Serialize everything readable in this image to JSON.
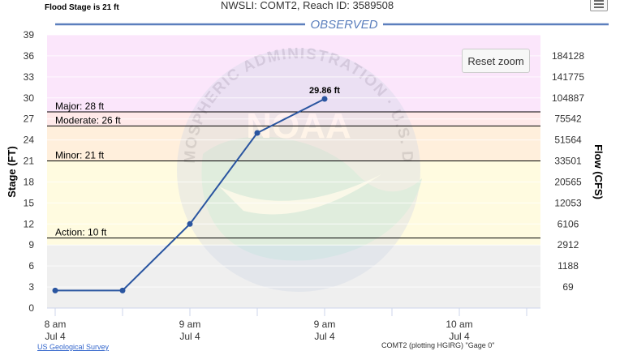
{
  "header": {
    "flood_stage_text": "Flood Stage is 21 ft",
    "station_text": "NWSLI: COMT2, Reach ID: 3589508"
  },
  "controls": {
    "reset_zoom_label": "Reset zoom"
  },
  "footer": {
    "source_link": "US Geological Survey",
    "plot_note": "COMT2 (plotting HGIRG) \"Gage 0\""
  },
  "chart_data": {
    "type": "line",
    "title": "OBSERVED",
    "ylabel": "Stage (FT)",
    "y2label": "Flow (CFS)",
    "ylim": [
      0,
      39
    ],
    "y_ticks": [
      0,
      3,
      6,
      9,
      12,
      15,
      18,
      21,
      24,
      27,
      30,
      33,
      36,
      39
    ],
    "y2_tick_labels": [
      {
        "stage": 3,
        "label": "69"
      },
      {
        "stage": 6,
        "label": "1188"
      },
      {
        "stage": 9,
        "label": "2912"
      },
      {
        "stage": 12,
        "label": "6106"
      },
      {
        "stage": 15,
        "label": "12053"
      },
      {
        "stage": 18,
        "label": "20565"
      },
      {
        "stage": 21,
        "label": "33501"
      },
      {
        "stage": 24,
        "label": "51564"
      },
      {
        "stage": 27,
        "label": "75542"
      },
      {
        "stage": 30,
        "label": "104887"
      },
      {
        "stage": 33,
        "label": "141775"
      },
      {
        "stage": 36,
        "label": "184128"
      }
    ],
    "x_tick_labels": [
      {
        "index": 0,
        "line1": "8 am",
        "line2": "Jul 4"
      },
      {
        "index": 2,
        "line1": "9 am",
        "line2": "Jul 4"
      },
      {
        "index": 4,
        "line1": "9 am",
        "line2": "Jul 4"
      },
      {
        "index": 6,
        "line1": "10 am",
        "line2": "Jul 4"
      }
    ],
    "x_minor_ticks": 8,
    "series": [
      {
        "values": [
          2.5,
          2.5,
          12,
          25,
          29.86
        ],
        "color": "#2a55a0"
      }
    ],
    "point_label": {
      "index": 4,
      "text": "29.86 ft"
    },
    "thresholds": [
      {
        "label": "Major: 28 ft",
        "value": 28
      },
      {
        "label": "Moderate: 26 ft",
        "value": 26
      },
      {
        "label": "Minor: 21 ft",
        "value": 21
      },
      {
        "label": "Action: 10 ft",
        "value": 10
      }
    ],
    "bands": [
      {
        "from": 0,
        "to": 9,
        "color": "#efefef"
      },
      {
        "from": 9,
        "to": 21,
        "color": "#fffbe0"
      },
      {
        "from": 21,
        "to": 26,
        "color": "#ffefdc"
      },
      {
        "from": 26,
        "to": 28,
        "color": "#ffe9e9"
      },
      {
        "from": 28,
        "to": 39,
        "color": "#fbe6fb"
      }
    ],
    "grid": true,
    "watermark": "NOAA",
    "watermark_ring_text": "NATIONAL OCEANIC AND ATMOSPHERIC ADMINISTRATION · U.S. DEPARTMENT OF COMMERCE"
  }
}
